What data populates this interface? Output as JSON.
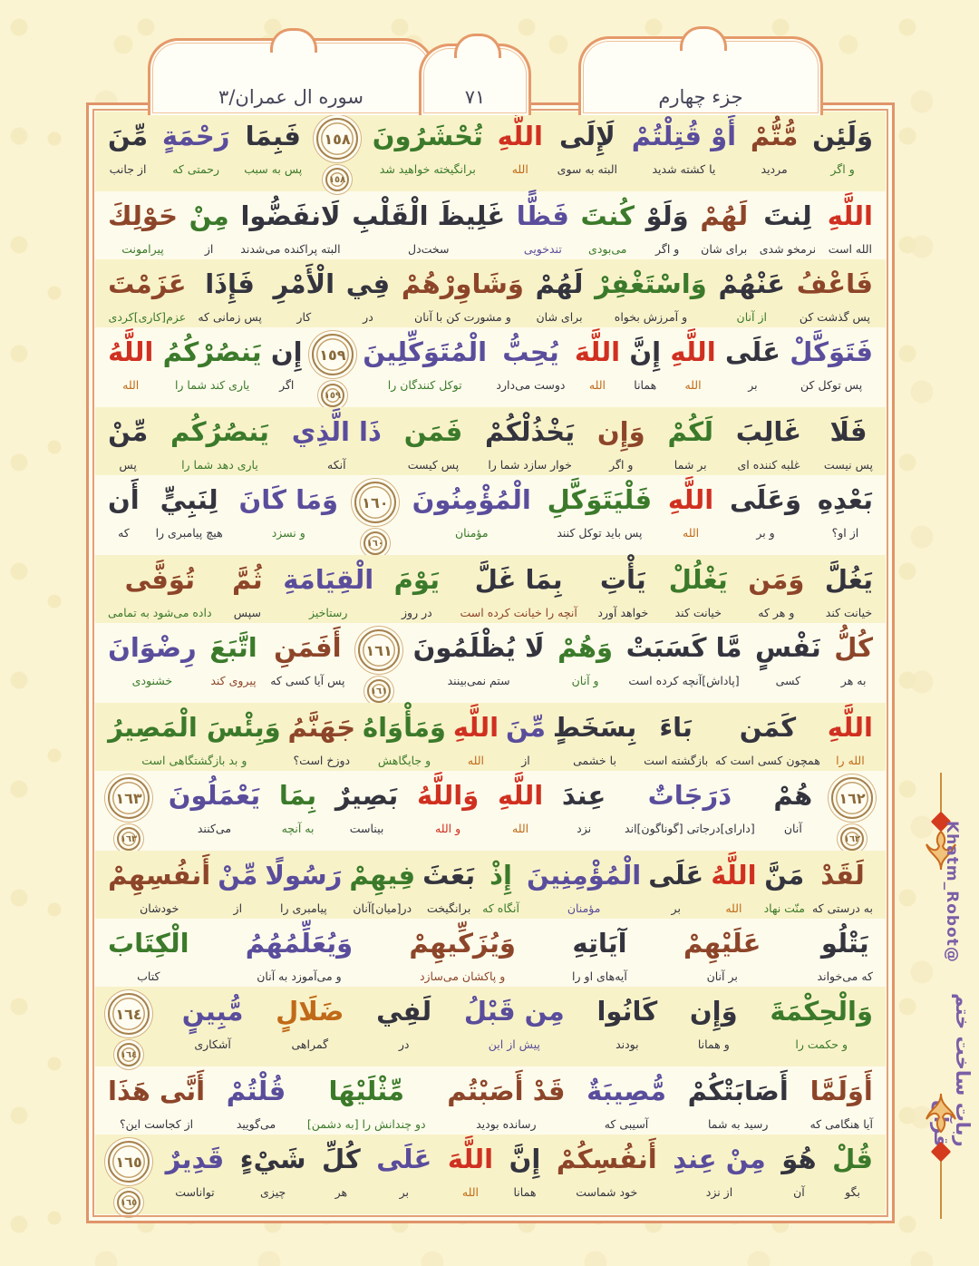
{
  "header": {
    "surah_badge": "سوره ال عمران/٣",
    "page_number": "٧١",
    "juz_badge": "جزء چهارم"
  },
  "side_credit": {
    "farsi": "ربات ساخت ختم قرآن",
    "handle": "@Khatm_Robot"
  },
  "palette": {
    "ink": "#34343f",
    "green": "#3b7a2a",
    "purple": "#5a4d9c",
    "red": "#d03020",
    "brown": "#8d4529",
    "orange": "#c06a18"
  },
  "rows": [
    {
      "hl": true,
      "words": [
        {
          "ar": "وَلَئِن",
          "fa": "و اگر",
          "c": "ink",
          "fc": "green"
        },
        {
          "ar": "مُّتُّمْ",
          "fa": "مردید",
          "c": "brown",
          "fc": "ink"
        },
        {
          "ar": "أَوْ قُتِلْتُمْ",
          "fa": "یا کشته شدید",
          "c": "purple",
          "fc": "ink"
        },
        {
          "ar": "لَإِلَى",
          "fa": "البته به سوی",
          "c": "ink",
          "fc": "ink"
        },
        {
          "ar": "اللَّهِ",
          "fa": "الله",
          "c": "red",
          "fc": "orange"
        },
        {
          "ar": "تُحْشَرُونَ",
          "fa": "برانگیخته خواهید شد",
          "c": "green",
          "fc": "green"
        },
        {
          "m": "١٥٨"
        },
        {
          "ar": "فَبِمَا",
          "fa": "پس به سبب",
          "c": "ink",
          "fc": "green"
        },
        {
          "ar": "رَحْمَةٍ",
          "fa": "رحمتی که",
          "c": "purple",
          "fc": "green"
        },
        {
          "ar": "مِّنَ",
          "fa": "از جانب",
          "c": "ink",
          "fc": "ink"
        }
      ]
    },
    {
      "hl": false,
      "words": [
        {
          "ar": "اللَّهِ",
          "fa": "الله است",
          "c": "red",
          "fc": "ink"
        },
        {
          "ar": "لِنتَ",
          "fa": "نرمخو شدی",
          "c": "ink",
          "fc": "ink"
        },
        {
          "ar": "لَهُمْ",
          "fa": "برای شان",
          "c": "brown",
          "fc": "ink"
        },
        {
          "ar": "وَلَوْ",
          "fa": "و اگر",
          "c": "ink",
          "fc": "ink"
        },
        {
          "ar": "كُنتَ",
          "fa": "می‌بودی",
          "c": "green",
          "fc": "green"
        },
        {
          "ar": "فَظًّا",
          "fa": "تندخویی",
          "c": "purple",
          "fc": "purple"
        },
        {
          "ar": "غَلِيظَ الْقَلْبِ",
          "fa": "سخت‌دل",
          "c": "ink",
          "fc": "ink"
        },
        {
          "ar": "لَانفَضُّوا",
          "fa": "البته پراکنده می‌شدند",
          "c": "ink",
          "fc": "ink"
        },
        {
          "ar": "مِنْ",
          "fa": "از",
          "c": "green",
          "fc": "ink"
        },
        {
          "ar": "حَوْلِكَ",
          "fa": "پیرامونت",
          "c": "brown",
          "fc": "green"
        }
      ]
    },
    {
      "hl": true,
      "words": [
        {
          "ar": "فَاعْفُ",
          "fa": "پس گذشت کن",
          "c": "brown",
          "fc": "ink"
        },
        {
          "ar": "عَنْهُمْ",
          "fa": "از آنان",
          "c": "ink",
          "fc": "green"
        },
        {
          "ar": "وَاسْتَغْفِرْ",
          "fa": "و آمرزش بخواه",
          "c": "green",
          "fc": "ink"
        },
        {
          "ar": "لَهُمْ",
          "fa": "برای شان",
          "c": "ink",
          "fc": "ink"
        },
        {
          "ar": "وَشَاوِرْهُمْ",
          "fa": "و مشورت کن با آنان",
          "c": "brown",
          "fc": "ink"
        },
        {
          "ar": "فِي",
          "fa": "در",
          "c": "ink",
          "fc": "ink"
        },
        {
          "ar": "الْأَمْرِ",
          "fa": "کار",
          "c": "ink",
          "fc": "ink"
        },
        {
          "ar": "فَإِذَا",
          "fa": "پس زمانی که",
          "c": "ink",
          "fc": "ink"
        },
        {
          "ar": "عَزَمْتَ",
          "fa": "عزم[کاری]کردی",
          "c": "brown",
          "fc": "green"
        }
      ]
    },
    {
      "hl": false,
      "words": [
        {
          "ar": "فَتَوَكَّلْ",
          "fa": "پس توکل کن",
          "c": "purple",
          "fc": "ink"
        },
        {
          "ar": "عَلَى",
          "fa": "بر",
          "c": "ink",
          "fc": "ink"
        },
        {
          "ar": "اللَّهِ",
          "fa": "الله",
          "c": "red",
          "fc": "orange"
        },
        {
          "ar": "إِنَّ",
          "fa": "همانا",
          "c": "ink",
          "fc": "ink"
        },
        {
          "ar": "اللَّهَ",
          "fa": "الله",
          "c": "red",
          "fc": "orange"
        },
        {
          "ar": "يُحِبُّ",
          "fa": "دوست می‌دارد",
          "c": "purple",
          "fc": "ink"
        },
        {
          "ar": "الْمُتَوَكِّلِينَ",
          "fa": "توکل کنندگان را",
          "c": "purple",
          "fc": "green"
        },
        {
          "m": "١٥٩"
        },
        {
          "ar": "إِن",
          "fa": "اگر",
          "c": "ink",
          "fc": "ink"
        },
        {
          "ar": "يَنصُرْكُمُ",
          "fa": "یاری کند شما را",
          "c": "green",
          "fc": "green"
        },
        {
          "ar": "اللَّهُ",
          "fa": "الله",
          "c": "red",
          "fc": "orange"
        }
      ]
    },
    {
      "hl": true,
      "words": [
        {
          "ar": "فَلَا",
          "fa": "پس نیست",
          "c": "ink",
          "fc": "ink"
        },
        {
          "ar": "غَالِبَ",
          "fa": "غلبه کننده ای",
          "c": "ink",
          "fc": "ink"
        },
        {
          "ar": "لَكُمْ",
          "fa": "بر شما",
          "c": "green",
          "fc": "ink"
        },
        {
          "ar": "وَإِن",
          "fa": "و اگر",
          "c": "brown",
          "fc": "ink"
        },
        {
          "ar": "يَخْذُلْكُمْ",
          "fa": "خوار سازد شما را",
          "c": "ink",
          "fc": "ink"
        },
        {
          "ar": "فَمَن",
          "fa": "پس کیست",
          "c": "green",
          "fc": "ink"
        },
        {
          "ar": "ذَا الَّذِي",
          "fa": "آنکه",
          "c": "purple",
          "fc": "ink"
        },
        {
          "ar": "يَنصُرُكُم",
          "fa": "یاری دهد شما را",
          "c": "green",
          "fc": "green"
        },
        {
          "ar": "مِّنْ",
          "fa": "پس",
          "c": "ink",
          "fc": "ink"
        }
      ]
    },
    {
      "hl": false,
      "words": [
        {
          "ar": "بَعْدِهِ",
          "fa": "از او؟",
          "c": "ink",
          "fc": "ink"
        },
        {
          "ar": "وَعَلَى",
          "fa": "و بر",
          "c": "ink",
          "fc": "ink"
        },
        {
          "ar": "اللَّهِ",
          "fa": "الله",
          "c": "red",
          "fc": "orange"
        },
        {
          "ar": "فَلْيَتَوَكَّلِ",
          "fa": "پس باید توکل کنند",
          "c": "green",
          "fc": "ink"
        },
        {
          "ar": "الْمُؤْمِنُونَ",
          "fa": "مؤمنان",
          "c": "purple",
          "fc": "green"
        },
        {
          "m": "١٦٠"
        },
        {
          "ar": "وَمَا كَانَ",
          "fa": "و نسزد",
          "c": "purple",
          "fc": "green"
        },
        {
          "ar": "لِنَبِيٍّ",
          "fa": "هیچ پیامبری را",
          "c": "ink",
          "fc": "ink"
        },
        {
          "ar": "أَن",
          "fa": "که",
          "c": "ink",
          "fc": "ink"
        }
      ]
    },
    {
      "hl": true,
      "words": [
        {
          "ar": "يَغُلَّ",
          "fa": "خیانت کند",
          "c": "ink",
          "fc": "ink"
        },
        {
          "ar": "وَمَن",
          "fa": "و هر که",
          "c": "brown",
          "fc": "ink"
        },
        {
          "ar": "يَغْلُلْ",
          "fa": "خیانت کند",
          "c": "green",
          "fc": "ink"
        },
        {
          "ar": "يَأْتِ",
          "fa": "خواهد آورد",
          "c": "ink",
          "fc": "ink"
        },
        {
          "ar": "بِمَا غَلَّ",
          "fa": "آنچه را خیانت کرده است",
          "c": "ink",
          "fc": "brown"
        },
        {
          "ar": "يَوْمَ",
          "fa": "در روز",
          "c": "green",
          "fc": "ink"
        },
        {
          "ar": "الْقِيَامَةِ",
          "fa": "رستاخیز",
          "c": "purple",
          "fc": "green"
        },
        {
          "ar": "ثُمَّ",
          "fa": "سپس",
          "c": "brown",
          "fc": "ink"
        },
        {
          "ar": "تُوَفَّى",
          "fa": "داده می‌شود به تمامی",
          "c": "brown",
          "fc": "green"
        }
      ]
    },
    {
      "hl": false,
      "words": [
        {
          "ar": "كُلُّ",
          "fa": "به هر",
          "c": "brown",
          "fc": "ink"
        },
        {
          "ar": "نَفْسٍ",
          "fa": "کسی",
          "c": "ink",
          "fc": "ink"
        },
        {
          "ar": "مَّا كَسَبَتْ",
          "fa": "[پاداش]آنچه کرده است",
          "c": "ink",
          "fc": "ink"
        },
        {
          "ar": "وَهُمْ",
          "fa": "و آنان",
          "c": "green",
          "fc": "green"
        },
        {
          "ar": "لَا يُظْلَمُونَ",
          "fa": "ستم نمی‌بینند",
          "c": "ink",
          "fc": "ink"
        },
        {
          "m": "١٦١"
        },
        {
          "ar": "أَفَمَنِ",
          "fa": "پس آیا کسی که",
          "c": "brown",
          "fc": "ink"
        },
        {
          "ar": "اتَّبَعَ",
          "fa": "پیروی کند",
          "c": "green",
          "fc": "brown"
        },
        {
          "ar": "رِضْوَانَ",
          "fa": "خشنودی",
          "c": "purple",
          "fc": "green"
        }
      ]
    },
    {
      "hl": true,
      "words": [
        {
          "ar": "اللَّهِ",
          "fa": "الله را",
          "c": "red",
          "fc": "orange"
        },
        {
          "ar": "كَمَن",
          "fa": "همچون کسی است که",
          "c": "ink",
          "fc": "ink"
        },
        {
          "ar": "بَاءَ",
          "fa": "بازگشته است",
          "c": "ink",
          "fc": "ink"
        },
        {
          "ar": "بِسَخَطٍ",
          "fa": "با خشمی",
          "c": "ink",
          "fc": "ink"
        },
        {
          "ar": "مِّنَ",
          "fa": "از",
          "c": "purple",
          "fc": "ink"
        },
        {
          "ar": "اللَّهِ",
          "fa": "الله",
          "c": "red",
          "fc": "orange"
        },
        {
          "ar": "وَمَأْوَاهُ",
          "fa": "و جایگاهش",
          "c": "green",
          "fc": "green"
        },
        {
          "ar": "جَهَنَّمُ",
          "fa": "دوزخ است؟",
          "c": "brown",
          "fc": "ink"
        },
        {
          "ar": "وَبِئْسَ الْمَصِيرُ",
          "fa": "و بد بازگشتگاهی است",
          "c": "green",
          "fc": "green"
        }
      ]
    },
    {
      "hl": false,
      "words": [
        {
          "m": "١٦٢"
        },
        {
          "ar": "هُمْ",
          "fa": "آنان",
          "c": "ink",
          "fc": "ink"
        },
        {
          "ar": "دَرَجَاتٌ",
          "fa": "[دارای]درجاتی [گوناگون]اند",
          "c": "purple",
          "fc": "ink"
        },
        {
          "ar": "عِندَ",
          "fa": "نزد",
          "c": "ink",
          "fc": "ink"
        },
        {
          "ar": "اللَّهِ",
          "fa": "الله",
          "c": "red",
          "fc": "orange"
        },
        {
          "ar": "وَاللَّهُ",
          "fa": "و الله",
          "c": "red",
          "fc": "red"
        },
        {
          "ar": "بَصِيرٌ",
          "fa": "بیناست",
          "c": "ink",
          "fc": "ink"
        },
        {
          "ar": "بِمَا",
          "fa": "به آنچه",
          "c": "green",
          "fc": "green"
        },
        {
          "ar": "يَعْمَلُونَ",
          "fa": "می‌کنند",
          "c": "purple",
          "fc": "ink"
        },
        {
          "m": "١٦٣"
        }
      ]
    },
    {
      "hl": true,
      "words": [
        {
          "ar": "لَقَدْ",
          "fa": "به درستی که",
          "c": "brown",
          "fc": "ink"
        },
        {
          "ar": "مَنَّ",
          "fa": "منّت نهاد",
          "c": "ink",
          "fc": "green"
        },
        {
          "ar": "اللَّهُ",
          "fa": "الله",
          "c": "red",
          "fc": "orange"
        },
        {
          "ar": "عَلَى",
          "fa": "بر",
          "c": "ink",
          "fc": "ink"
        },
        {
          "ar": "الْمُؤْمِنِينَ",
          "fa": "مؤمنان",
          "c": "purple",
          "fc": "purple"
        },
        {
          "ar": "إِذْ",
          "fa": "آنگاه که",
          "c": "green",
          "fc": "green"
        },
        {
          "ar": "بَعَثَ",
          "fa": "برانگیخت",
          "c": "ink",
          "fc": "ink"
        },
        {
          "ar": "فِيهِمْ",
          "fa": "در[میان]آنان",
          "c": "green",
          "fc": "ink"
        },
        {
          "ar": "رَسُولًا",
          "fa": "پیامبری را",
          "c": "purple",
          "fc": "ink"
        },
        {
          "ar": "مِّنْ",
          "fa": "از",
          "c": "purple",
          "fc": "ink"
        },
        {
          "ar": "أَنفُسِهِمْ",
          "fa": "خودشان",
          "c": "brown",
          "fc": "ink"
        }
      ]
    },
    {
      "hl": false,
      "words": [
        {
          "ar": "يَتْلُو",
          "fa": "که می‌خواند",
          "c": "ink",
          "fc": "ink"
        },
        {
          "ar": "عَلَيْهِمْ",
          "fa": "بر آنان",
          "c": "brown",
          "fc": "ink"
        },
        {
          "ar": "آيَاتِهِ",
          "fa": "آیه‌های او را",
          "c": "ink",
          "fc": "ink"
        },
        {
          "ar": "وَيُزَكِّيهِمْ",
          "fa": "و پاکشان می‌سازد",
          "c": "brown",
          "fc": "brown"
        },
        {
          "ar": "وَيُعَلِّمُهُمُ",
          "fa": "و می‌آموزد به آنان",
          "c": "purple",
          "fc": "ink"
        },
        {
          "ar": "الْكِتَابَ",
          "fa": "کتاب",
          "c": "green",
          "fc": "ink"
        }
      ]
    },
    {
      "hl": true,
      "words": [
        {
          "ar": "وَالْحِكْمَةَ",
          "fa": "و حکمت را",
          "c": "green",
          "fc": "green"
        },
        {
          "ar": "وَإِن",
          "fa": "و همانا",
          "c": "ink",
          "fc": "ink"
        },
        {
          "ar": "كَانُوا",
          "fa": "بودند",
          "c": "ink",
          "fc": "ink"
        },
        {
          "ar": "مِن قَبْلُ",
          "fa": "پیش از این",
          "c": "purple",
          "fc": "purple"
        },
        {
          "ar": "لَفِي",
          "fa": "در",
          "c": "ink",
          "fc": "ink"
        },
        {
          "ar": "ضَلَالٍ",
          "fa": "گمراهی",
          "c": "orange",
          "fc": "ink"
        },
        {
          "ar": "مُّبِينٍ",
          "fa": "آشکاری",
          "c": "purple",
          "fc": "ink"
        },
        {
          "m": "١٦٤"
        }
      ]
    },
    {
      "hl": false,
      "words": [
        {
          "ar": "أَوَلَمَّا",
          "fa": "آیا هنگامی که",
          "c": "brown",
          "fc": "ink"
        },
        {
          "ar": "أَصَابَتْكُمْ",
          "fa": "رسید به شما",
          "c": "ink",
          "fc": "ink"
        },
        {
          "ar": "مُّصِيبَةٌ",
          "fa": "آسیبی که",
          "c": "purple",
          "fc": "ink"
        },
        {
          "ar": "قَدْ أَصَبْتُم",
          "fa": "رسانده بودید",
          "c": "brown",
          "fc": "ink"
        },
        {
          "ar": "مِّثْلَيْهَا",
          "fa": "دو چندانش را [به دشمن]",
          "c": "green",
          "fc": "green"
        },
        {
          "ar": "قُلْتُمْ",
          "fa": "می‌گویید",
          "c": "purple",
          "fc": "ink"
        },
        {
          "ar": "أَنَّى هَذَا",
          "fa": "از کجاست این؟",
          "c": "brown",
          "fc": "ink"
        }
      ]
    },
    {
      "hl": true,
      "words": [
        {
          "ar": "قُلْ",
          "fa": "بگو",
          "c": "green",
          "fc": "ink"
        },
        {
          "ar": "هُوَ",
          "fa": "آن",
          "c": "ink",
          "fc": "ink"
        },
        {
          "ar": "مِنْ عِندِ",
          "fa": "از نزد",
          "c": "purple",
          "fc": "ink"
        },
        {
          "ar": "أَنفُسِكُمْ",
          "fa": "خود شماست",
          "c": "brown",
          "fc": "ink"
        },
        {
          "ar": "إِنَّ",
          "fa": "همانا",
          "c": "ink",
          "fc": "ink"
        },
        {
          "ar": "اللَّهَ",
          "fa": "الله",
          "c": "red",
          "fc": "orange"
        },
        {
          "ar": "عَلَى",
          "fa": "بر",
          "c": "purple",
          "fc": "ink"
        },
        {
          "ar": "كُلِّ",
          "fa": "هر",
          "c": "ink",
          "fc": "ink"
        },
        {
          "ar": "شَيْءٍ",
          "fa": "چیزی",
          "c": "ink",
          "fc": "ink"
        },
        {
          "ar": "قَدِيرٌ",
          "fa": "تواناست",
          "c": "purple",
          "fc": "ink"
        },
        {
          "m": "١٦٥"
        }
      ]
    }
  ]
}
